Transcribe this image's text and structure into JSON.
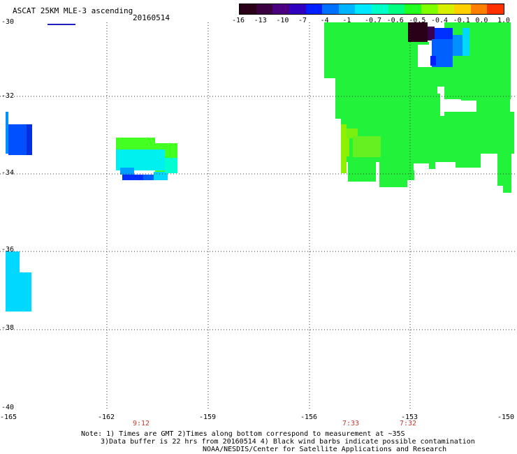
{
  "title": "ASCAT 25KM MLE-3 ascending",
  "date": "20160514",
  "colorbar": {
    "labels": [
      "-16",
      "-13",
      "-10",
      "-7",
      "-4",
      "-1",
      "-0.7",
      "-0.6",
      "-0.5",
      "-0.4",
      "-0.1",
      "0.0",
      "1.0"
    ],
    "colors": [
      "#2a0018",
      "#3a0040",
      "#4b0080",
      "#3000c0",
      "#0020ff",
      "#0070ff",
      "#00b4ff",
      "#00e8ff",
      "#00ffc8",
      "#00ff80",
      "#20ff20",
      "#80ff00",
      "#d8f000",
      "#ffd000",
      "#ff8000",
      "#ff3000"
    ]
  },
  "latitude_labels": [
    "-30",
    "-32",
    "-34",
    "-36",
    "-38",
    "-40"
  ],
  "longitude_labels": [
    "-165",
    "-162",
    "-159",
    "-156",
    "-153",
    "-150"
  ],
  "times": [
    "9:12",
    "7:33",
    "7:32"
  ],
  "notes": {
    "line1": "Note: 1) Times are GMT 2)Times along bottom correspond to measurement at ~35S",
    "line2": "3)Data buffer is 22 hrs from 20160514 4) Black wind barbs indicate possible contamination",
    "line3": "NOAA/NESDIS/Center for Satellite Applications and Research"
  }
}
